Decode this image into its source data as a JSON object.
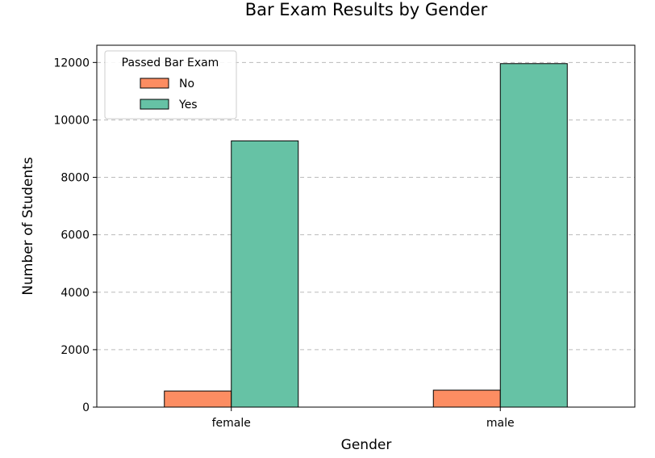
{
  "chart_data": {
    "type": "bar",
    "title": "Bar Exam Results by Gender",
    "xlabel": "Gender",
    "ylabel": "Number of Students",
    "categories": [
      "female",
      "male"
    ],
    "series": [
      {
        "name": "No",
        "values": [
          560,
          590
        ],
        "color": "#fc8d62"
      },
      {
        "name": "Yes",
        "values": [
          9270,
          11960
        ],
        "color": "#66c2a5"
      }
    ],
    "ylim": [
      0,
      12600
    ],
    "yticks": [
      0,
      2000,
      4000,
      6000,
      8000,
      10000,
      12000
    ],
    "grid": "y dashed",
    "legend": {
      "title": "Passed Bar Exam",
      "placement": "top-left"
    }
  }
}
